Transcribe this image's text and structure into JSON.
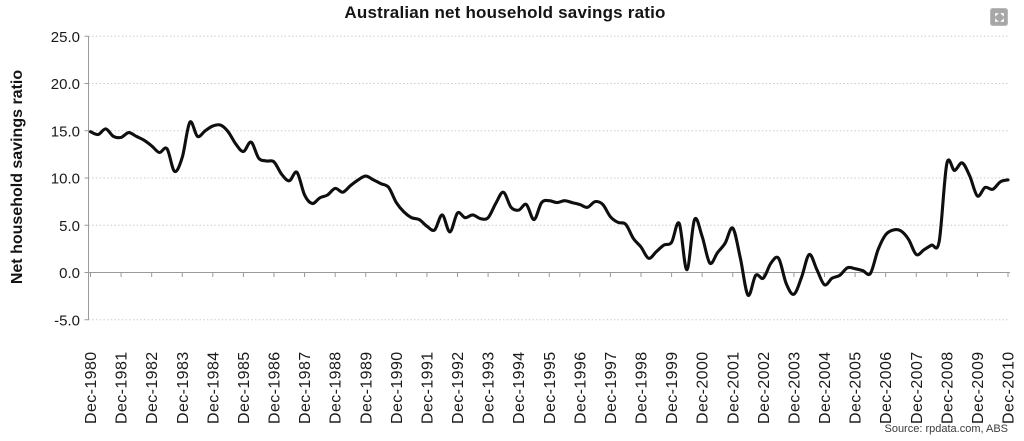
{
  "header": {
    "expand_icon": "expand-arrows-icon"
  },
  "source": {
    "text": "Source: rpdata.com, ABS"
  },
  "colors": {
    "line": "#0f0f0f",
    "grid": "#cccccc",
    "axis": "#9a9a9a",
    "text": "#1a1a1a",
    "icon_bg": "#a7a7a7"
  },
  "chart_data": {
    "type": "line",
    "title": "Australian net household savings ratio",
    "ylabel": "Net household savings ratio",
    "xlabel": "",
    "ylim": [
      -5.0,
      25.0
    ],
    "grid": "horizontal-dotted",
    "legend": "none",
    "frequency": "quarterly",
    "x_start": "Dec-1980",
    "x_end": "Dec-2010",
    "y_ticks": [
      {
        "label": "25.0",
        "value": 25
      },
      {
        "label": "20.0",
        "value": 20
      },
      {
        "label": "15.0",
        "value": 15
      },
      {
        "label": "10.0",
        "value": 10
      },
      {
        "label": "5.0",
        "value": 5
      },
      {
        "label": "0.0",
        "value": 0
      },
      {
        "label": "-5.0",
        "value": -5
      }
    ],
    "x_tick_labels": [
      "Dec-1980",
      "Dec-1981",
      "Dec-1982",
      "Dec-1983",
      "Dec-1984",
      "Dec-1985",
      "Dec-1986",
      "Dec-1987",
      "Dec-1988",
      "Dec-1989",
      "Dec-1990",
      "Dec-1991",
      "Dec-1992",
      "Dec-1993",
      "Dec-1994",
      "Dec-1995",
      "Dec-1996",
      "Dec-1997",
      "Dec-1998",
      "Dec-1999",
      "Dec-2000",
      "Dec-2001",
      "Dec-2002",
      "Dec-2003",
      "Dec-2004",
      "Dec-2005",
      "Dec-2006",
      "Dec-2007",
      "Dec-2008",
      "Dec-2009",
      "Dec-2010"
    ],
    "values": [
      14.9,
      14.6,
      15.2,
      14.4,
      14.3,
      14.8,
      14.4,
      14.0,
      13.4,
      12.7,
      13.1,
      10.7,
      12.2,
      15.9,
      14.4,
      15.0,
      15.5,
      15.6,
      14.9,
      13.6,
      12.8,
      13.8,
      12.1,
      11.8,
      11.7,
      10.4,
      9.7,
      10.6,
      8.2,
      7.3,
      7.9,
      8.2,
      8.9,
      8.5,
      9.2,
      9.8,
      10.2,
      9.8,
      9.4,
      9.0,
      7.4,
      6.4,
      5.8,
      5.6,
      4.9,
      4.5,
      6.1,
      4.3,
      6.3,
      5.8,
      6.1,
      5.7,
      5.8,
      7.3,
      8.5,
      6.9,
      6.6,
      7.2,
      5.6,
      7.4,
      7.6,
      7.4,
      7.6,
      7.4,
      7.2,
      6.9,
      7.5,
      7.2,
      5.9,
      5.3,
      5.1,
      3.6,
      2.7,
      1.5,
      2.2,
      2.9,
      3.2,
      5.2,
      0.3,
      5.6,
      3.8,
      1.0,
      2.1,
      3.1,
      4.7,
      1.5,
      -2.4,
      -0.3,
      -0.6,
      1.0,
      1.5,
      -1.2,
      -2.3,
      -0.5,
      1.9,
      0.3,
      -1.3,
      -0.6,
      -0.3,
      0.5,
      0.4,
      0.2,
      -0.1,
      2.4,
      4.0,
      4.5,
      4.4,
      3.5,
      1.9,
      2.4,
      2.9,
      3.3,
      11.5,
      10.8,
      11.6,
      10.2,
      8.1,
      9.0,
      8.8,
      9.6,
      9.8
    ]
  }
}
